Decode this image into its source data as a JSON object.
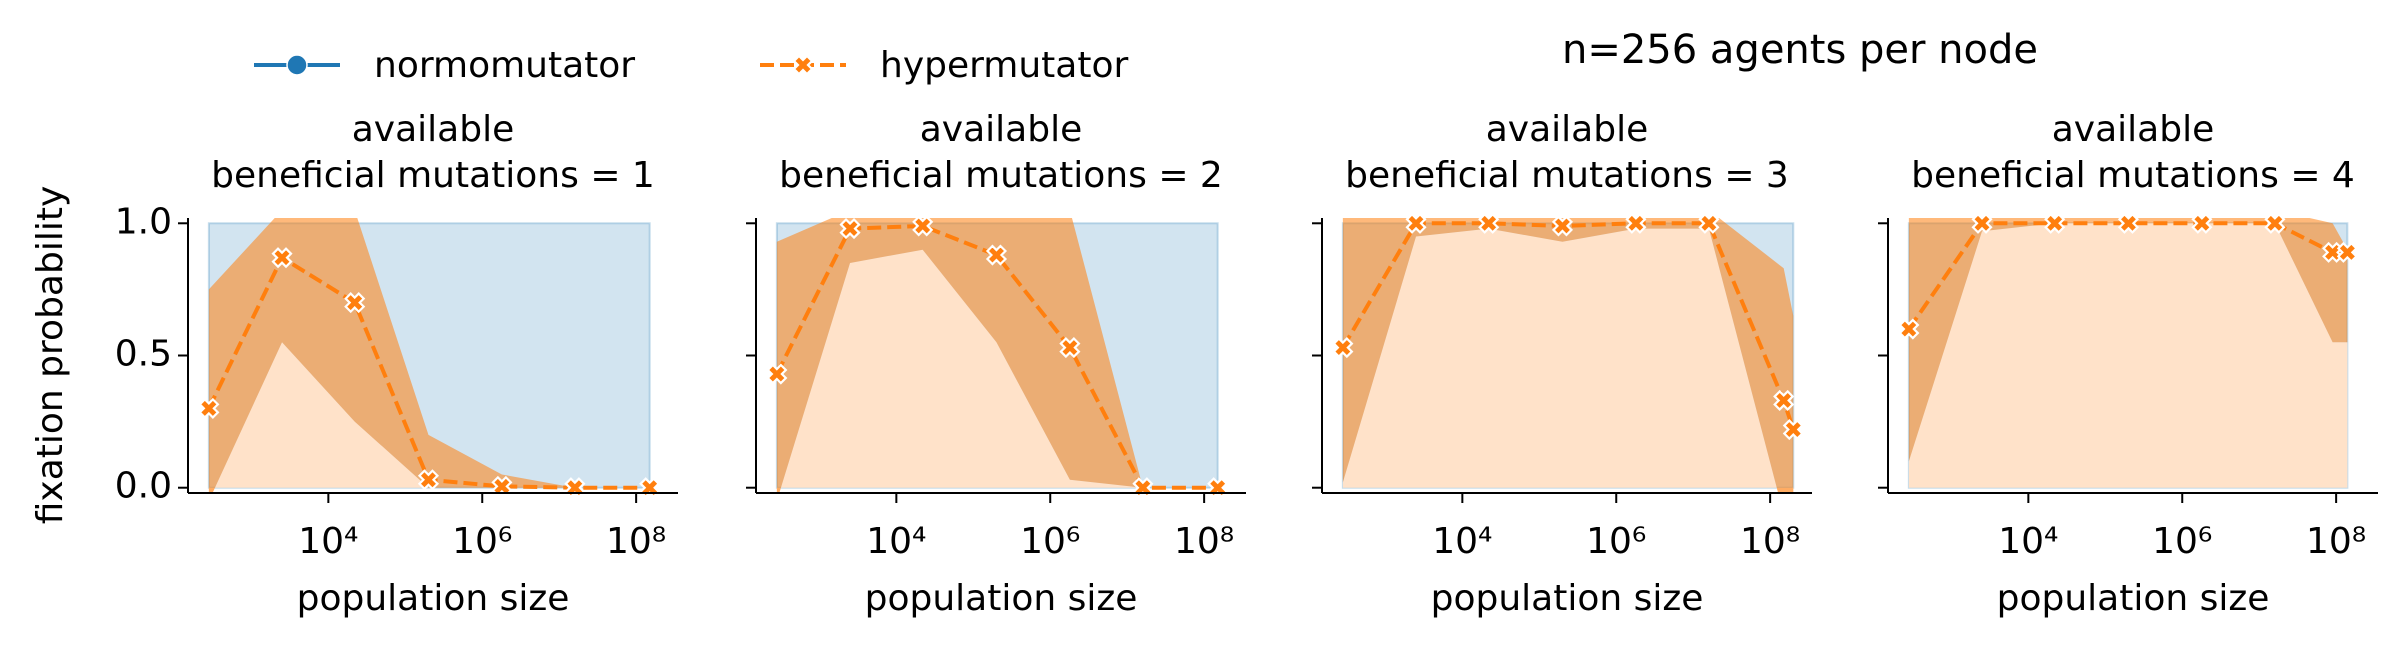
{
  "figure": {
    "title": "n=256 agents per node",
    "ylabel": "fixation probability"
  },
  "chart_data": [
    {
      "type": "line",
      "title": [
        "available",
        "beneficial mutations = 1"
      ],
      "xlabel": "population size",
      "xscale": "log",
      "xlim": [
        150,
        350000000
      ],
      "ylim": [
        -0.02,
        1.02
      ],
      "xticks": [
        {
          "value": 10000,
          "label": "10⁴"
        },
        {
          "value": 1000000,
          "label": "10⁶"
        },
        {
          "value": 100000000,
          "label": "10⁸"
        }
      ],
      "yticks": [
        {
          "value": 0,
          "label": "0.0"
        },
        {
          "value": 0.5,
          "label": "0.5"
        },
        {
          "value": 1,
          "label": "1.0"
        }
      ],
      "series": [
        {
          "name": "normomutator",
          "color": "#1f77b4",
          "x": [
            280,
            2500,
            22000,
            200000,
            1800000,
            16000000,
            150000000
          ],
          "values": [
            null,
            null,
            null,
            null,
            null,
            null,
            null
          ],
          "ci_lower": [
            0,
            0,
            0,
            0,
            0,
            0,
            0
          ],
          "ci_upper": [
            1,
            1,
            1,
            1,
            1,
            1,
            1
          ]
        },
        {
          "name": "hypermutator",
          "color": "#ff7f0e",
          "x": [
            280,
            2500,
            22000,
            200000,
            1800000,
            16000000,
            150000000
          ],
          "values": [
            0.3,
            0.87,
            0.7,
            0.03,
            0.005,
            0,
            0
          ],
          "ci_lower": [
            -0.05,
            0.55,
            0.25,
            0,
            0,
            0,
            0
          ],
          "ci_upper": [
            0.75,
            1.05,
            1.05,
            0.2,
            0.05,
            0,
            0
          ]
        }
      ]
    },
    {
      "type": "line",
      "title": [
        "available",
        "beneficial mutations = 2"
      ],
      "xlabel": "population size",
      "xscale": "log",
      "xlim": [
        150,
        350000000
      ],
      "ylim": [
        -0.02,
        1.02
      ],
      "xticks": [
        {
          "value": 10000,
          "label": "10⁴"
        },
        {
          "value": 1000000,
          "label": "10⁶"
        },
        {
          "value": 100000000,
          "label": "10⁸"
        }
      ],
      "yticks": [
        0,
        0.5,
        1
      ],
      "series": [
        {
          "name": "normomutator",
          "color": "#1f77b4",
          "x": [
            280,
            2500,
            22000,
            200000,
            1800000,
            16000000,
            150000000
          ],
          "values": [
            null,
            null,
            null,
            null,
            null,
            null,
            null
          ],
          "ci_lower": [
            0,
            0,
            0,
            0,
            0,
            0,
            0
          ],
          "ci_upper": [
            1,
            1,
            1,
            1,
            1,
            1,
            1
          ]
        },
        {
          "name": "hypermutator",
          "color": "#ff7f0e",
          "x": [
            280,
            2500,
            22000,
            200000,
            1800000,
            16000000,
            150000000
          ],
          "values": [
            0.43,
            0.98,
            0.99,
            0.88,
            0.53,
            0,
            0
          ],
          "ci_lower": [
            -0.05,
            0.85,
            0.9,
            0.55,
            0.03,
            0,
            0
          ],
          "ci_upper": [
            0.93,
            1.05,
            1.05,
            1.05,
            1.05,
            0,
            0
          ]
        }
      ]
    },
    {
      "type": "line",
      "title": [
        "available",
        "beneficial mutations = 3"
      ],
      "xlabel": "population size",
      "xscale": "log",
      "xlim": [
        150,
        350000000
      ],
      "ylim": [
        -0.02,
        1.02
      ],
      "xticks": [
        {
          "value": 10000,
          "label": "10⁴"
        },
        {
          "value": 1000000,
          "label": "10⁶"
        },
        {
          "value": 100000000,
          "label": "10⁸"
        }
      ],
      "yticks": [
        0,
        0.5,
        1
      ],
      "series": [
        {
          "name": "normomutator",
          "color": "#1f77b4",
          "x": [
            280,
            2500,
            22000,
            200000,
            1800000,
            16000000,
            150000000,
            200000000
          ],
          "values": [
            null,
            null,
            null,
            null,
            null,
            null,
            null,
            null
          ],
          "ci_lower": [
            0,
            0,
            0,
            0,
            0,
            0,
            0,
            0
          ],
          "ci_upper": [
            1,
            1,
            1,
            1,
            1,
            1,
            1,
            1
          ]
        },
        {
          "name": "hypermutator",
          "color": "#ff7f0e",
          "x": [
            280,
            2500,
            22000,
            200000,
            1800000,
            16000000,
            150000000,
            200000000
          ],
          "values": [
            0.53,
            1,
            1,
            0.99,
            1,
            1,
            0.33,
            0.22
          ],
          "ci_lower": [
            0.02,
            0.95,
            0.98,
            0.93,
            0.98,
            0.98,
            -0.1,
            -0.1
          ],
          "ci_upper": [
            1.05,
            1.05,
            1.05,
            1.05,
            1.05,
            1.05,
            0.83,
            0.65
          ]
        }
      ]
    },
    {
      "type": "line",
      "title": [
        "available",
        "beneficial mutations = 4"
      ],
      "xlabel": "population size",
      "xscale": "log",
      "xlim": [
        150,
        350000000
      ],
      "ylim": [
        -0.02,
        1.02
      ],
      "xticks": [
        {
          "value": 10000,
          "label": "10⁴"
        },
        {
          "value": 1000000,
          "label": "10⁶"
        },
        {
          "value": 100000000,
          "label": "10⁸"
        }
      ],
      "yticks": [
        0,
        0.5,
        1
      ],
      "series": [
        {
          "name": "normomutator",
          "color": "#1f77b4",
          "x": [
            280,
            2500,
            22000,
            200000,
            1800000,
            16000000,
            90000000,
            140000000
          ],
          "values": [
            null,
            null,
            null,
            null,
            null,
            null,
            null,
            null
          ],
          "ci_lower": [
            0,
            0,
            0,
            0,
            0,
            0,
            0,
            0
          ],
          "ci_upper": [
            1,
            1,
            1,
            1,
            1,
            1,
            1,
            1
          ]
        },
        {
          "name": "hypermutator",
          "color": "#ff7f0e",
          "x": [
            280,
            2500,
            22000,
            200000,
            1800000,
            16000000,
            90000000,
            140000000
          ],
          "values": [
            0.6,
            1,
            1,
            1,
            1,
            1,
            0.89,
            0.89
          ],
          "ci_lower": [
            0.1,
            0.97,
            1,
            1,
            1,
            1,
            0.55,
            0.55
          ],
          "ci_upper": [
            1.05,
            1.05,
            1.05,
            1.05,
            1.05,
            1.05,
            1.0,
            0.9
          ]
        }
      ]
    }
  ]
}
